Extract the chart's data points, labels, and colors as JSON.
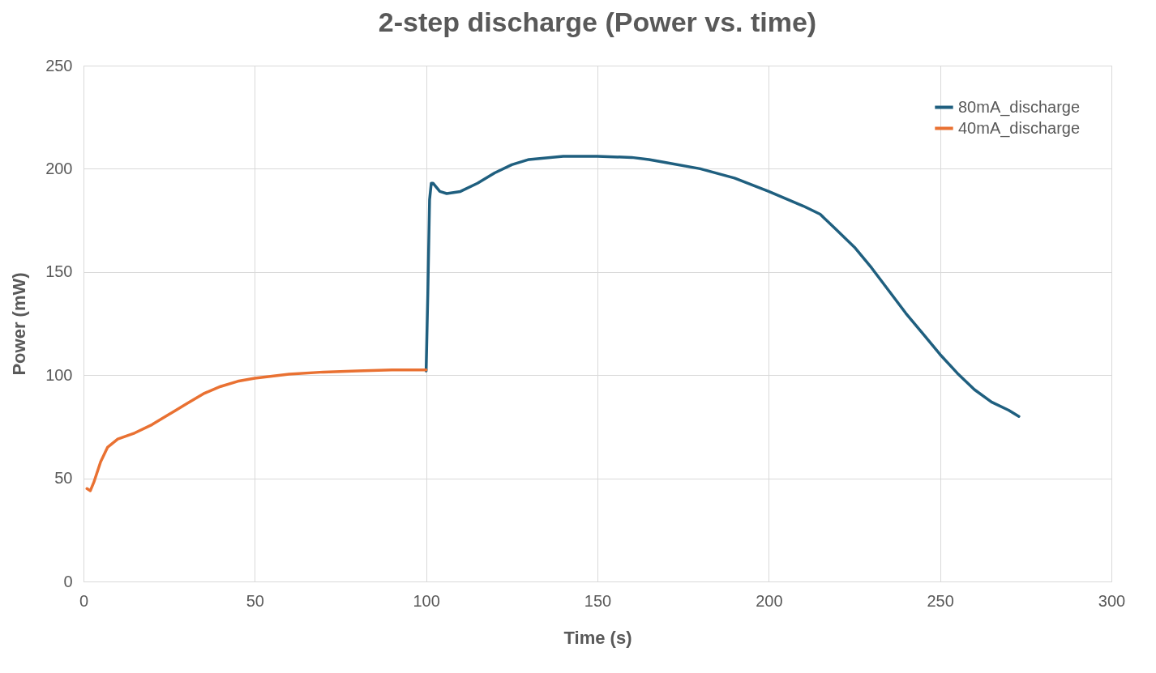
{
  "chart_data": {
    "type": "line",
    "title": "2-step discharge (Power vs. time)",
    "xlabel": "Time (s)",
    "ylabel": "Power (mW)",
    "xlim": [
      0,
      300
    ],
    "xticks": [
      0,
      50,
      100,
      150,
      200,
      250,
      300
    ],
    "ylim": [
      0,
      250
    ],
    "yticks": [
      0,
      50,
      100,
      150,
      200,
      250
    ],
    "grid": true,
    "legend": "top right",
    "line_style": "solid",
    "marker": "none",
    "series": [
      {
        "name": "80mA_discharge",
        "color": "#1f5f7f",
        "x": [
          100,
          100.5,
          101,
          101.5,
          102,
          104,
          106,
          110,
          115,
          120,
          125,
          130,
          140,
          150,
          160,
          165,
          170,
          180,
          190,
          200,
          205,
          210,
          215,
          220,
          225,
          230,
          235,
          240,
          245,
          250,
          255,
          260,
          265,
          270,
          273
        ],
        "values": [
          102,
          140,
          185,
          193,
          193,
          189,
          188,
          189,
          193,
          198,
          202,
          204.5,
          206,
          206,
          205.5,
          204.5,
          203,
          200,
          195.5,
          189,
          185.5,
          182,
          178,
          170,
          162,
          152,
          141,
          130,
          120,
          110,
          101,
          93,
          87,
          83,
          80
        ]
      },
      {
        "name": "40mA_discharge",
        "color": "#e97132",
        "x": [
          1,
          2,
          3,
          5,
          7,
          10,
          15,
          20,
          25,
          30,
          35,
          40,
          45,
          50,
          60,
          70,
          80,
          90,
          100
        ],
        "values": [
          45,
          44,
          48,
          58,
          65,
          69,
          72,
          76,
          81,
          86,
          91,
          94.5,
          97,
          98.5,
          100.5,
          101.5,
          102,
          102.5,
          102.5
        ]
      }
    ]
  }
}
